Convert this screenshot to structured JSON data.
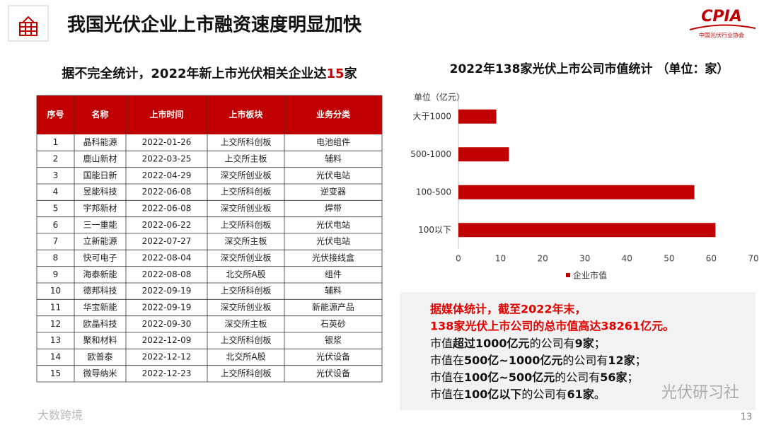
{
  "header": {
    "title": "我国光伏企业上市融资速度明显加快",
    "logo": "CPIA",
    "logo_sub": "中国光伏行业协会"
  },
  "table_caption": [
    "据不完全统计，2022年新上市光伏相关企业达",
    "15",
    "家"
  ],
  "table": {
    "columns": [
      "序号",
      "名称",
      "上市时间",
      "上市板块",
      "业务分类"
    ],
    "rows": [
      [
        "1",
        "晶科能源",
        "2022-01-26",
        "上交所科创板",
        "电池组件"
      ],
      [
        "2",
        "鹿山新材",
        "2022-03-25",
        "上交所主板",
        "辅料"
      ],
      [
        "3",
        "国能日新",
        "2022-04-29",
        "深交所创业板",
        "光伏电站"
      ],
      [
        "4",
        "昱能科技",
        "2022-06-08",
        "上交所科创板",
        "逆变器"
      ],
      [
        "5",
        "宇邦新材",
        "2022-06-08",
        "深交所创业板",
        "焊带"
      ],
      [
        "6",
        "三一重能",
        "2022-06-22",
        "上交所科创板",
        "光伏电站"
      ],
      [
        "7",
        "立新能源",
        "2022-07-27",
        "深交所主板",
        "光伏电站"
      ],
      [
        "8",
        "快可电子",
        "2022-08-04",
        "深交所创业板",
        "光伏接线盒"
      ],
      [
        "9",
        "海泰新能",
        "2022-08-08",
        "北交所A股",
        "组件"
      ],
      [
        "10",
        "德邦科技",
        "2022-09-19",
        "上交所科创板",
        "辅料"
      ],
      [
        "11",
        "华宝新能",
        "2022-09-19",
        "深交所创业板",
        "新能源产品"
      ],
      [
        "12",
        "欧晶科技",
        "2022-09-30",
        "深交所主板",
        "石英砂"
      ],
      [
        "13",
        "聚和材料",
        "2022-12-09",
        "上交所科创板",
        "银浆"
      ],
      [
        "14",
        "欧普泰",
        "2022-12-12",
        "北交所A股",
        "光伏设备"
      ],
      [
        "15",
        "微导纳米",
        "2022-12-23",
        "上交所科创板",
        "光伏设备"
      ]
    ]
  },
  "chart_data": {
    "type": "bar",
    "orientation": "horizontal",
    "title": "2022年138家光伏上市公司市值统计 （单位：家）",
    "unit_label": "单位（亿元）",
    "categories": [
      "大于1000",
      "500-1000",
      "100-500",
      "100以下"
    ],
    "series": [
      {
        "name": "企业市值",
        "color": "#c00000",
        "values": [
          9,
          12,
          56,
          61
        ]
      }
    ],
    "xlim": [
      0,
      70
    ],
    "xticks": [
      0,
      10,
      20,
      30,
      40,
      50,
      60,
      70
    ],
    "legend": "bottom"
  },
  "note": {
    "headline": [
      "据媒体统计，截至2022年末，",
      "138家光伏上市公司的总市值高达38261亿元。"
    ],
    "lines": [
      [
        "市值",
        "超过1000亿元",
        "的公司有",
        "9家",
        "；"
      ],
      [
        "市值在",
        "500亿~1000亿元",
        "的公司有",
        "12家",
        "；"
      ],
      [
        "市值在",
        "100亿~500亿元",
        "的公司有",
        "56家",
        "；"
      ],
      [
        "市值在",
        "100亿以下",
        "的公司有",
        "61家",
        "。"
      ]
    ]
  },
  "watermark": "光伏研习社",
  "source_mark": "大数跨境",
  "page_number": "13"
}
